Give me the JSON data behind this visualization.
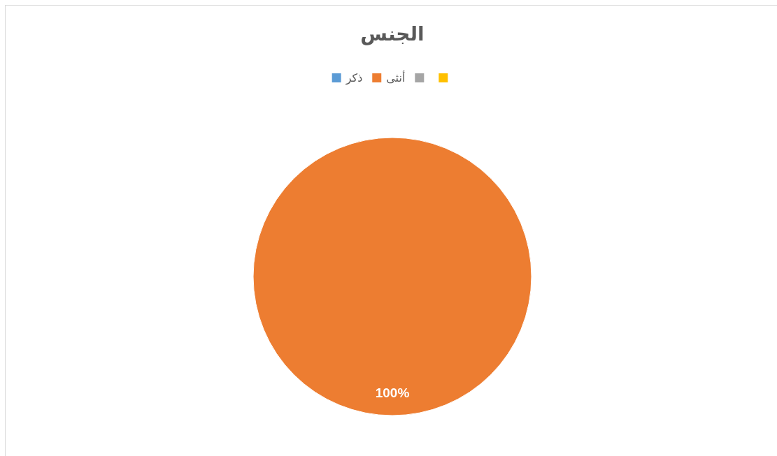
{
  "chart_data": {
    "type": "pie",
    "title": "الجنس",
    "categories": [
      "ذكر",
      "أنثى",
      null,
      null
    ],
    "values": [
      0,
      100,
      0,
      0
    ],
    "colors": [
      "#5b9bd5",
      "#ed7d31",
      "#a5a5a5",
      "#ffc000"
    ],
    "value_labels": [
      null,
      "100%",
      null,
      null
    ],
    "legend": "top"
  }
}
